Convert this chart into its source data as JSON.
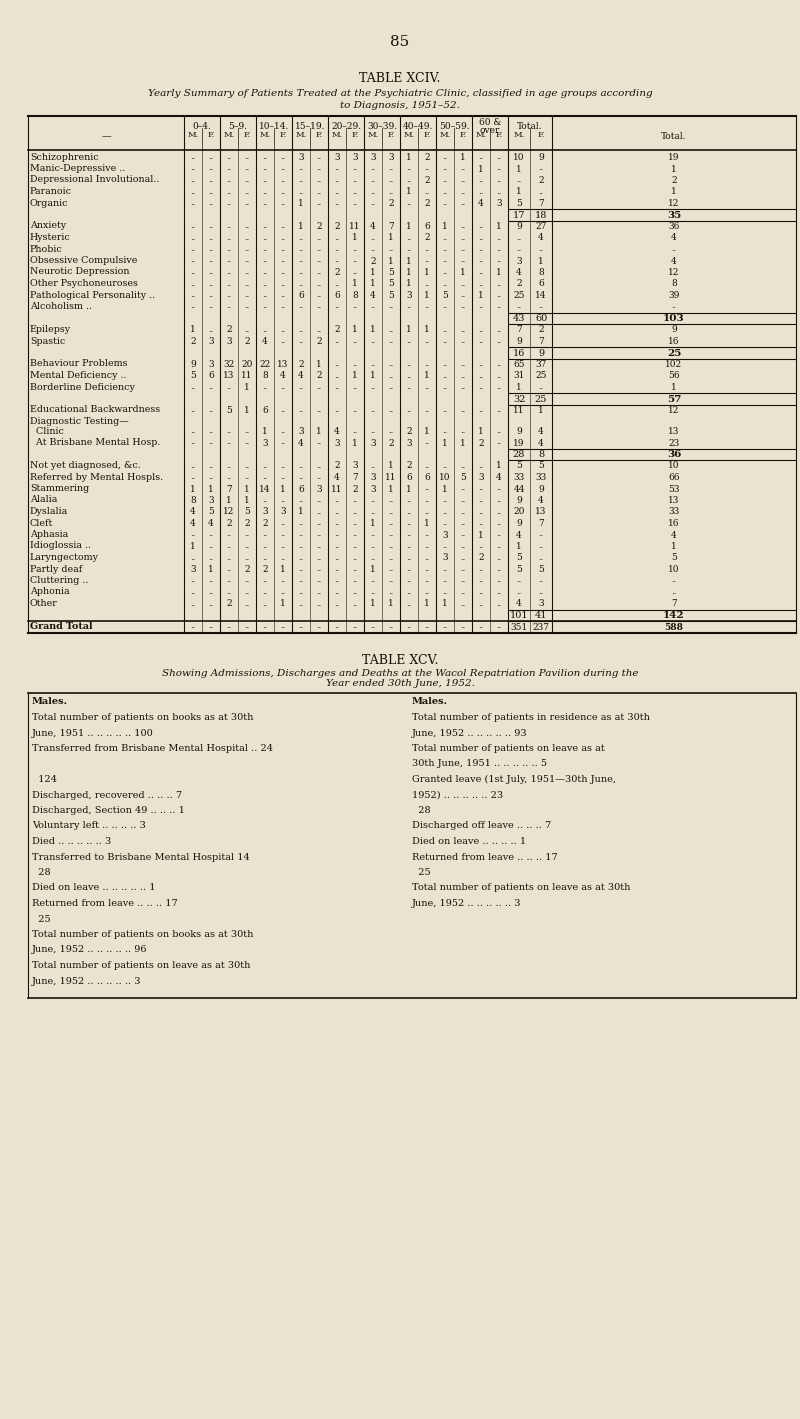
{
  "page_number": "85",
  "table1_title": "TABLE XCIV.",
  "table1_subtitle_1": "Yearly Summary of Patients Treated at the Psychiatric Clinic, classified in age groups according",
  "table1_subtitle_2": "to Diagnosis, 1951–52.",
  "bg_color": "#e8e4d0",
  "text_color": "#1a1008",
  "rows": [
    {
      "label": "Schizophrenic",
      "vals": [
        "..",
        "..",
        "..",
        "..",
        "..",
        "..",
        "3",
        "..",
        "3",
        "3",
        "3",
        "3",
        "1",
        "2",
        "..",
        "1",
        "..",
        "..",
        "10",
        "9",
        "19"
      ],
      "subtotal": false,
      "group_end": false
    },
    {
      "label": "Manic-Depressive ..",
      "vals": [
        "..",
        "..",
        "..",
        "..",
        "..",
        "..",
        "..",
        "..",
        "..",
        "..",
        "..",
        "..",
        "..",
        "..",
        "..",
        "..",
        "1",
        "..",
        "1",
        "..",
        "1"
      ],
      "subtotal": false,
      "group_end": false
    },
    {
      "label": "Depressional Involutional..",
      "vals": [
        "..",
        "..",
        "..",
        "..",
        "..",
        "..",
        "..",
        "..",
        "..",
        "..",
        "..",
        "..",
        "..",
        "2",
        "..",
        "..",
        "..",
        "..",
        "..",
        "2",
        "2"
      ],
      "subtotal": false,
      "group_end": false
    },
    {
      "label": "Paranoic",
      "vals": [
        "..",
        "..",
        "..",
        "..",
        "..",
        "..",
        "..",
        "..",
        "..",
        "..",
        "..",
        "..",
        "1",
        "..",
        "..",
        "..",
        "..",
        "..",
        "1",
        "..",
        "1"
      ],
      "subtotal": false,
      "group_end": false
    },
    {
      "label": "Organic",
      "vals": [
        "..",
        "..",
        "..",
        "..",
        "..",
        "..",
        "1",
        "..",
        "..",
        "..",
        "..",
        "2",
        "..",
        "2",
        "..",
        "..",
        "4",
        "3",
        "5",
        "7",
        "12"
      ],
      "subtotal": false,
      "group_end": true
    },
    {
      "label": "",
      "vals_total": [
        "17",
        "18",
        "35"
      ],
      "subtotal": true
    },
    {
      "label": "Anxiety",
      "vals": [
        "..",
        "..",
        "..",
        "..",
        "..",
        "..",
        "1",
        "2",
        "2",
        "11",
        "4",
        "7",
        "1",
        "6",
        "1",
        "..",
        "..",
        "1",
        "9",
        "27",
        "36"
      ],
      "subtotal": false,
      "group_end": false
    },
    {
      "label": "Hysteric",
      "vals": [
        "..",
        "..",
        "..",
        "..",
        "..",
        "..",
        "..",
        "..",
        "..",
        "1",
        "..",
        "1",
        "..",
        "2",
        "..",
        "..",
        "..",
        "..",
        "..",
        "4",
        "4"
      ],
      "subtotal": false,
      "group_end": false
    },
    {
      "label": "Phobic",
      "vals": [
        "..",
        "..",
        "..",
        "..",
        "..",
        "..",
        "..",
        "..",
        "..",
        "..",
        "..",
        "..",
        "..",
        "..",
        "..",
        "..",
        "..",
        "..",
        "..",
        "..",
        ".."
      ],
      "subtotal": false,
      "group_end": false
    },
    {
      "label": "Obsessive Compulsive",
      "vals": [
        "..",
        "..",
        "..",
        "..",
        "..",
        "..",
        "..",
        "..",
        "..",
        "..",
        "2",
        "1",
        "1",
        "..",
        "..",
        "..",
        "..",
        "..",
        "3",
        "1",
        "4"
      ],
      "subtotal": false,
      "group_end": false
    },
    {
      "label": "Neurotic Depression",
      "vals": [
        "..",
        "..",
        "..",
        "..",
        "..",
        "..",
        "..",
        "..",
        "2",
        "..",
        "1",
        "5",
        "1",
        "1",
        "..",
        "1",
        "..",
        "1",
        "4",
        "8",
        "12"
      ],
      "subtotal": false,
      "group_end": false
    },
    {
      "label": "Other Psychoneuroses",
      "vals": [
        "..",
        "..",
        "..",
        "..",
        "..",
        "..",
        "..",
        "..",
        "..",
        "1",
        "1",
        "5",
        "1",
        "..",
        "..",
        "..",
        "..",
        "..",
        "2",
        "6",
        "8"
      ],
      "subtotal": false,
      "group_end": false
    },
    {
      "label": "Pathological Personality ..",
      "vals": [
        "..",
        "..",
        "..",
        "..",
        "..",
        "..",
        "6",
        "..",
        "6",
        "8",
        "4",
        "5",
        "3",
        "1",
        "5",
        "..",
        "1",
        "..",
        "25",
        "14",
        "39"
      ],
      "subtotal": false,
      "group_end": false
    },
    {
      "label": "Alcoholism ..",
      "vals": [
        "..",
        "..",
        "..",
        "..",
        "..",
        "..",
        "..",
        "..",
        "..",
        "..",
        "..",
        "..",
        "..",
        "..",
        "..",
        "..",
        "..",
        "..",
        "..",
        "..",
        ".."
      ],
      "subtotal": false,
      "group_end": true
    },
    {
      "label": "",
      "vals_total": [
        "43",
        "60",
        "103"
      ],
      "subtotal": true
    },
    {
      "label": "Epilepsy",
      "vals": [
        "1",
        "..",
        "2",
        "..",
        "..",
        "..",
        "..",
        "..",
        "2",
        "1",
        "1",
        "..",
        "1",
        "1",
        "..",
        "..",
        "..",
        "..",
        "7",
        "2",
        "9"
      ],
      "subtotal": false,
      "group_end": false
    },
    {
      "label": "Spastic",
      "vals": [
        "2",
        "3",
        "3",
        "2",
        "4",
        "..",
        "..",
        "2",
        "..",
        "..",
        "..",
        "..",
        "..",
        "..",
        "..",
        "..",
        "..",
        "..",
        "9",
        "7",
        "16"
      ],
      "subtotal": false,
      "group_end": true
    },
    {
      "label": "",
      "vals_total": [
        "16",
        "9",
        "25"
      ],
      "subtotal": true
    },
    {
      "label": "Behaviour Problems",
      "vals": [
        "9",
        "3",
        "32",
        "20",
        "22",
        "13",
        "2",
        "1",
        "..",
        "..",
        "..",
        "..",
        "..",
        "..",
        "..",
        "..",
        "..",
        "..",
        "65",
        "37",
        "102"
      ],
      "subtotal": false,
      "group_end": true
    },
    {
      "label": "Mental Deficiency ..",
      "vals": [
        "5",
        "6",
        "13",
        "11",
        "8",
        "4",
        "4",
        "2",
        "..",
        "1",
        "1",
        "..",
        "..",
        "1",
        "..",
        "..",
        "..",
        "..",
        "31",
        "25",
        "56"
      ],
      "subtotal": false,
      "group_end": false
    },
    {
      "label": "Borderline Deficiency",
      "vals": [
        "..",
        "..",
        "..",
        "1",
        "..",
        "..",
        "..",
        "..",
        "..",
        "..",
        "..",
        "..",
        "..",
        "..",
        "..",
        "..",
        "..",
        "..",
        "1",
        "..",
        "1"
      ],
      "subtotal": false,
      "group_end": true
    },
    {
      "label": "",
      "vals_total": [
        "32",
        "25",
        "57"
      ],
      "subtotal": true
    },
    {
      "label": "Educational Backwardness",
      "vals": [
        "..",
        "..",
        "5",
        "1",
        "6",
        "..",
        "..",
        "..",
        "..",
        "..",
        "..",
        "..",
        "..",
        "..",
        "..",
        "..",
        "..",
        "..",
        "11",
        "1",
        "12"
      ],
      "subtotal": false,
      "group_end": true
    },
    {
      "label": "Diagnostic Testing—",
      "vals": [],
      "subtotal": false,
      "group_end": false,
      "header_only": true
    },
    {
      "label": "  Clinic",
      "vals": [
        "..",
        "..",
        "..",
        "..",
        "1",
        "..",
        "3",
        "1",
        "4",
        "..",
        "..",
        "..",
        "2",
        "1",
        "..",
        "..",
        "1",
        "..",
        "..",
        "..",
        "9",
        "4",
        "13"
      ],
      "subtotal": false,
      "group_end": false
    },
    {
      "label": "  At Brisbane Mental Hosp.",
      "vals": [
        "..",
        "..",
        "..",
        "..",
        "3",
        "..",
        "4",
        "..",
        "3",
        "1",
        "3",
        "2",
        "3",
        "..",
        "1",
        "1",
        "2",
        "..",
        "..",
        "..",
        "19",
        "4",
        "23"
      ],
      "subtotal": false,
      "group_end": true
    },
    {
      "label": "",
      "vals_total": [
        "28",
        "8",
        "36"
      ],
      "subtotal": true
    },
    {
      "label": "Not yet diagnosed, &c.",
      "vals": [
        "..",
        "..",
        "..",
        "..",
        "..",
        "..",
        "..",
        "..",
        "2",
        "3",
        "..",
        "1",
        "2",
        "..",
        "..",
        "..",
        "..",
        "1",
        "1",
        "..",
        "5",
        "5",
        "10"
      ],
      "subtotal": false,
      "group_end": true
    },
    {
      "label": "Referred by Mental Hospls.",
      "vals": [
        "..",
        "..",
        "..",
        "..",
        "..",
        "..",
        "..",
        "..",
        "4",
        "7",
        "3",
        "11",
        "6",
        "6",
        "10",
        "5",
        "3",
        "4",
        "7",
        "..",
        "33",
        "33",
        "66"
      ],
      "subtotal": false,
      "group_end": true
    },
    {
      "label": "Stammering",
      "vals": [
        "1",
        "1",
        "7",
        "1",
        "14",
        "1",
        "6",
        "3",
        "11",
        "2",
        "3",
        "1",
        "1",
        "..",
        "1",
        "..",
        "..",
        "..",
        "44",
        "9",
        "53"
      ],
      "subtotal": false,
      "group_end": false
    },
    {
      "label": "Alalia",
      "vals": [
        "8",
        "3",
        "1",
        "1",
        "..",
        "..",
        "..",
        "..",
        "..",
        "..",
        "..",
        "..",
        "..",
        "..",
        "..",
        "..",
        "..",
        "..",
        "9",
        "4",
        "13"
      ],
      "subtotal": false,
      "group_end": false
    },
    {
      "label": "Dyslalia",
      "vals": [
        "4",
        "5",
        "12",
        "5",
        "3",
        "3",
        "1",
        "..",
        "..",
        "..",
        "..",
        "..",
        "..",
        "..",
        "..",
        "..",
        "..",
        "..",
        "20",
        "13",
        "33"
      ],
      "subtotal": false,
      "group_end": false
    },
    {
      "label": "Cleft",
      "vals": [
        "4",
        "4",
        "2",
        "2",
        "2",
        "..",
        "..",
        "..",
        "..",
        "..",
        "1",
        "..",
        "..",
        "1",
        "..",
        "..",
        "..",
        "..",
        "9",
        "7",
        "16"
      ],
      "subtotal": false,
      "group_end": false
    },
    {
      "label": "Aphasia",
      "vals": [
        "..",
        "..",
        "..",
        "..",
        "..",
        "..",
        "..",
        "..",
        "..",
        "..",
        "..",
        "..",
        "..",
        "..",
        "3",
        "..",
        "1",
        "..",
        "4",
        "..",
        "4"
      ],
      "subtotal": false,
      "group_end": false
    },
    {
      "label": "Idioglossia ..",
      "vals": [
        "1",
        "..",
        "..",
        "..",
        "..",
        "..",
        "..",
        "..",
        "..",
        "..",
        "..",
        "..",
        "..",
        "..",
        "..",
        "..",
        "..",
        "..",
        "1",
        "..",
        "1"
      ],
      "subtotal": false,
      "group_end": false
    },
    {
      "label": "Laryngectomy",
      "vals": [
        "..",
        "..",
        "..",
        "..",
        "..",
        "..",
        "..",
        "..",
        "..",
        "..",
        "..",
        "..",
        "..",
        "..",
        "3",
        "..",
        "2",
        "..",
        "5",
        "..",
        "5"
      ],
      "subtotal": false,
      "group_end": false
    },
    {
      "label": "Partly deaf",
      "vals": [
        "3",
        "1",
        "..",
        "2",
        "2",
        "1",
        "..",
        "..",
        "..",
        "..",
        "1",
        "..",
        "..",
        "..",
        "..",
        "..",
        "..",
        "..",
        "5",
        "5",
        "10"
      ],
      "subtotal": false,
      "group_end": false
    },
    {
      "label": "Cluttering ..",
      "vals": [
        "..",
        "..",
        "..",
        "..",
        "..",
        "..",
        "..",
        "..",
        "..",
        "..",
        "..",
        "..",
        "..",
        "..",
        "..",
        "..",
        "..",
        "..",
        "..",
        "..",
        ".."
      ],
      "subtotal": false,
      "group_end": false
    },
    {
      "label": "Aphonia",
      "vals": [
        "..",
        "..",
        "..",
        "..",
        "..",
        "..",
        "..",
        "..",
        "..",
        "..",
        "..",
        "..",
        "..",
        "..",
        "..",
        "..",
        "..",
        "..",
        "..",
        "..",
        ".."
      ],
      "subtotal": false,
      "group_end": false
    },
    {
      "label": "Other",
      "vals": [
        "..",
        "..",
        "2",
        "..",
        "..",
        "1",
        "..",
        "..",
        "..",
        "..",
        "1",
        "1",
        "..",
        "1",
        "1",
        "..",
        "..",
        "..",
        "4",
        "3",
        "7"
      ],
      "subtotal": false,
      "group_end": true
    },
    {
      "label": "",
      "vals_total": [
        "101",
        "41",
        "142"
      ],
      "subtotal": true
    },
    {
      "label": "Grand Total",
      "vals": [
        "..",
        "..",
        "..",
        "..",
        "..",
        "..",
        "..",
        "..",
        "..",
        "..",
        "..",
        "..",
        "..",
        "..",
        "..",
        "..",
        "..",
        "..",
        "351",
        "237",
        "588"
      ],
      "subtotal": false,
      "group_end": false,
      "grand_total": true
    }
  ],
  "table2_title": "TABLE XCV.",
  "table2_subtitle_1": "Showing Admissions, Discharges and Deaths at the Wacol Repatriation Pavilion during the",
  "table2_subtitle_2": "Year ended 30th June, 1952.",
  "t2_left": [
    [
      "Males.",
      true
    ],
    [
      "Total number of patients on books as at 30th",
      false
    ],
    [
      "June, 1951 .. .. .. .. .. 100",
      false
    ],
    [
      "Transferred from Brisbane Mental Hospital .. 24",
      false
    ],
    [
      "",
      false
    ],
    [
      "  124",
      false
    ],
    [
      "Discharged, recovered .. .. .. 7",
      false
    ],
    [
      "Discharged, Section 49 .. .. .. 1",
      false
    ],
    [
      "Voluntary left .. .. .. .. 3",
      false
    ],
    [
      "Died .. .. .. .. .. 3",
      false
    ],
    [
      "Transferred to Brisbane Mental Hospital 14",
      false
    ],
    [
      "  28",
      false
    ],
    [
      "Died on leave .. .. .. .. .. 1",
      false
    ],
    [
      "Returned from leave .. .. .. 17",
      false
    ],
    [
      "  25",
      false
    ],
    [
      "Total number of patients on books as at 30th",
      false
    ],
    [
      "June, 1952 .. .. .. .. .. 96",
      false
    ],
    [
      "Total number of patients on leave as at 30th",
      false
    ],
    [
      "June, 1952 .. .. .. .. .. 3",
      false
    ]
  ],
  "t2_right": [
    [
      "Males.",
      true
    ],
    [
      "Total number of patients in residence as at 30th",
      false
    ],
    [
      "June, 1952 .. .. .. .. .. 93",
      false
    ],
    [
      "Total number of patients on leave as at",
      false
    ],
    [
      "30th June, 1951 .. .. .. .. .. 5",
      false
    ],
    [
      "Granted leave (1st July, 1951—30th June,",
      false
    ],
    [
      "1952) .. .. .. .. .. 23",
      false
    ],
    [
      "  28",
      false
    ],
    [
      "Discharged off leave .. .. .. 7",
      false
    ],
    [
      "Died on leave .. .. .. .. 1",
      false
    ],
    [
      "Returned from leave .. .. .. 17",
      false
    ],
    [
      "  25",
      false
    ],
    [
      "Total number of patients on leave as at 30th",
      false
    ],
    [
      "June, 1952 .. .. .. .. .. 3",
      false
    ]
  ]
}
